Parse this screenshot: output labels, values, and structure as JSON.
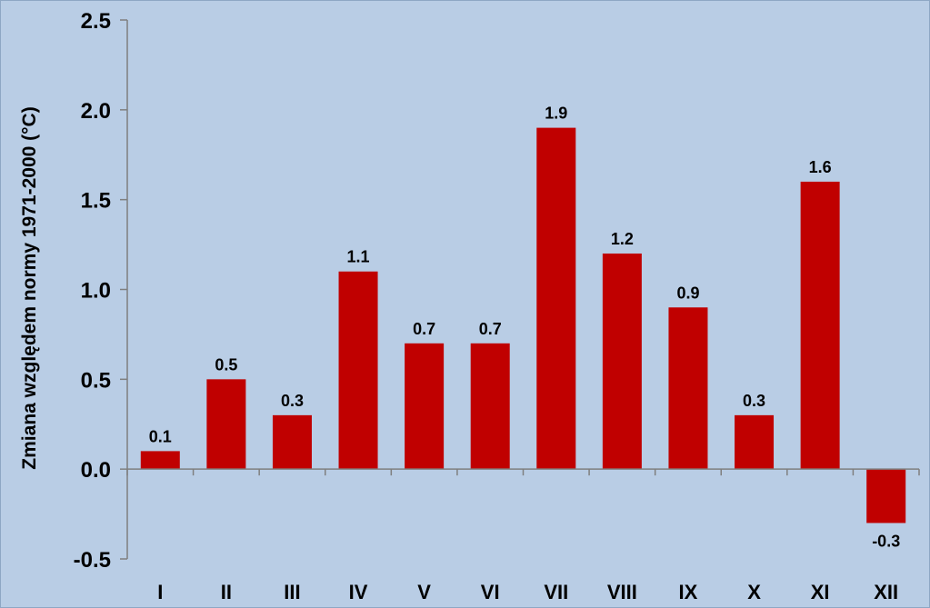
{
  "chart_data": {
    "type": "bar",
    "categories": [
      "I",
      "II",
      "III",
      "IV",
      "V",
      "VI",
      "VII",
      "VIII",
      "IX",
      "X",
      "XI",
      "XII"
    ],
    "values": [
      0.1,
      0.5,
      0.3,
      1.1,
      0.7,
      0.7,
      1.9,
      1.2,
      0.9,
      0.3,
      1.6,
      -0.3
    ],
    "data_labels": [
      "0.1",
      "0.5",
      "0.3",
      "1.1",
      "0.7",
      "0.7",
      "1.9",
      "1.2",
      "0.9",
      "0.3",
      "1.6",
      "-0.3"
    ],
    "title": "",
    "xlabel": "",
    "ylabel": "Zmiana względem normy 1971-2000 (°C)",
    "ylim": [
      -0.5,
      2.5
    ],
    "yticks": [
      2.5,
      2.0,
      1.5,
      1.0,
      0.5,
      0.0,
      -0.5
    ],
    "ytick_labels": [
      "2.5",
      "2.0",
      "1.5",
      "1.0",
      "0.5",
      "0.0",
      "-0.5"
    ],
    "grid": false,
    "legend": "none",
    "colors": {
      "bar": "#c00000",
      "background": "#b9cde5",
      "axis": "#7f7f7f"
    }
  }
}
